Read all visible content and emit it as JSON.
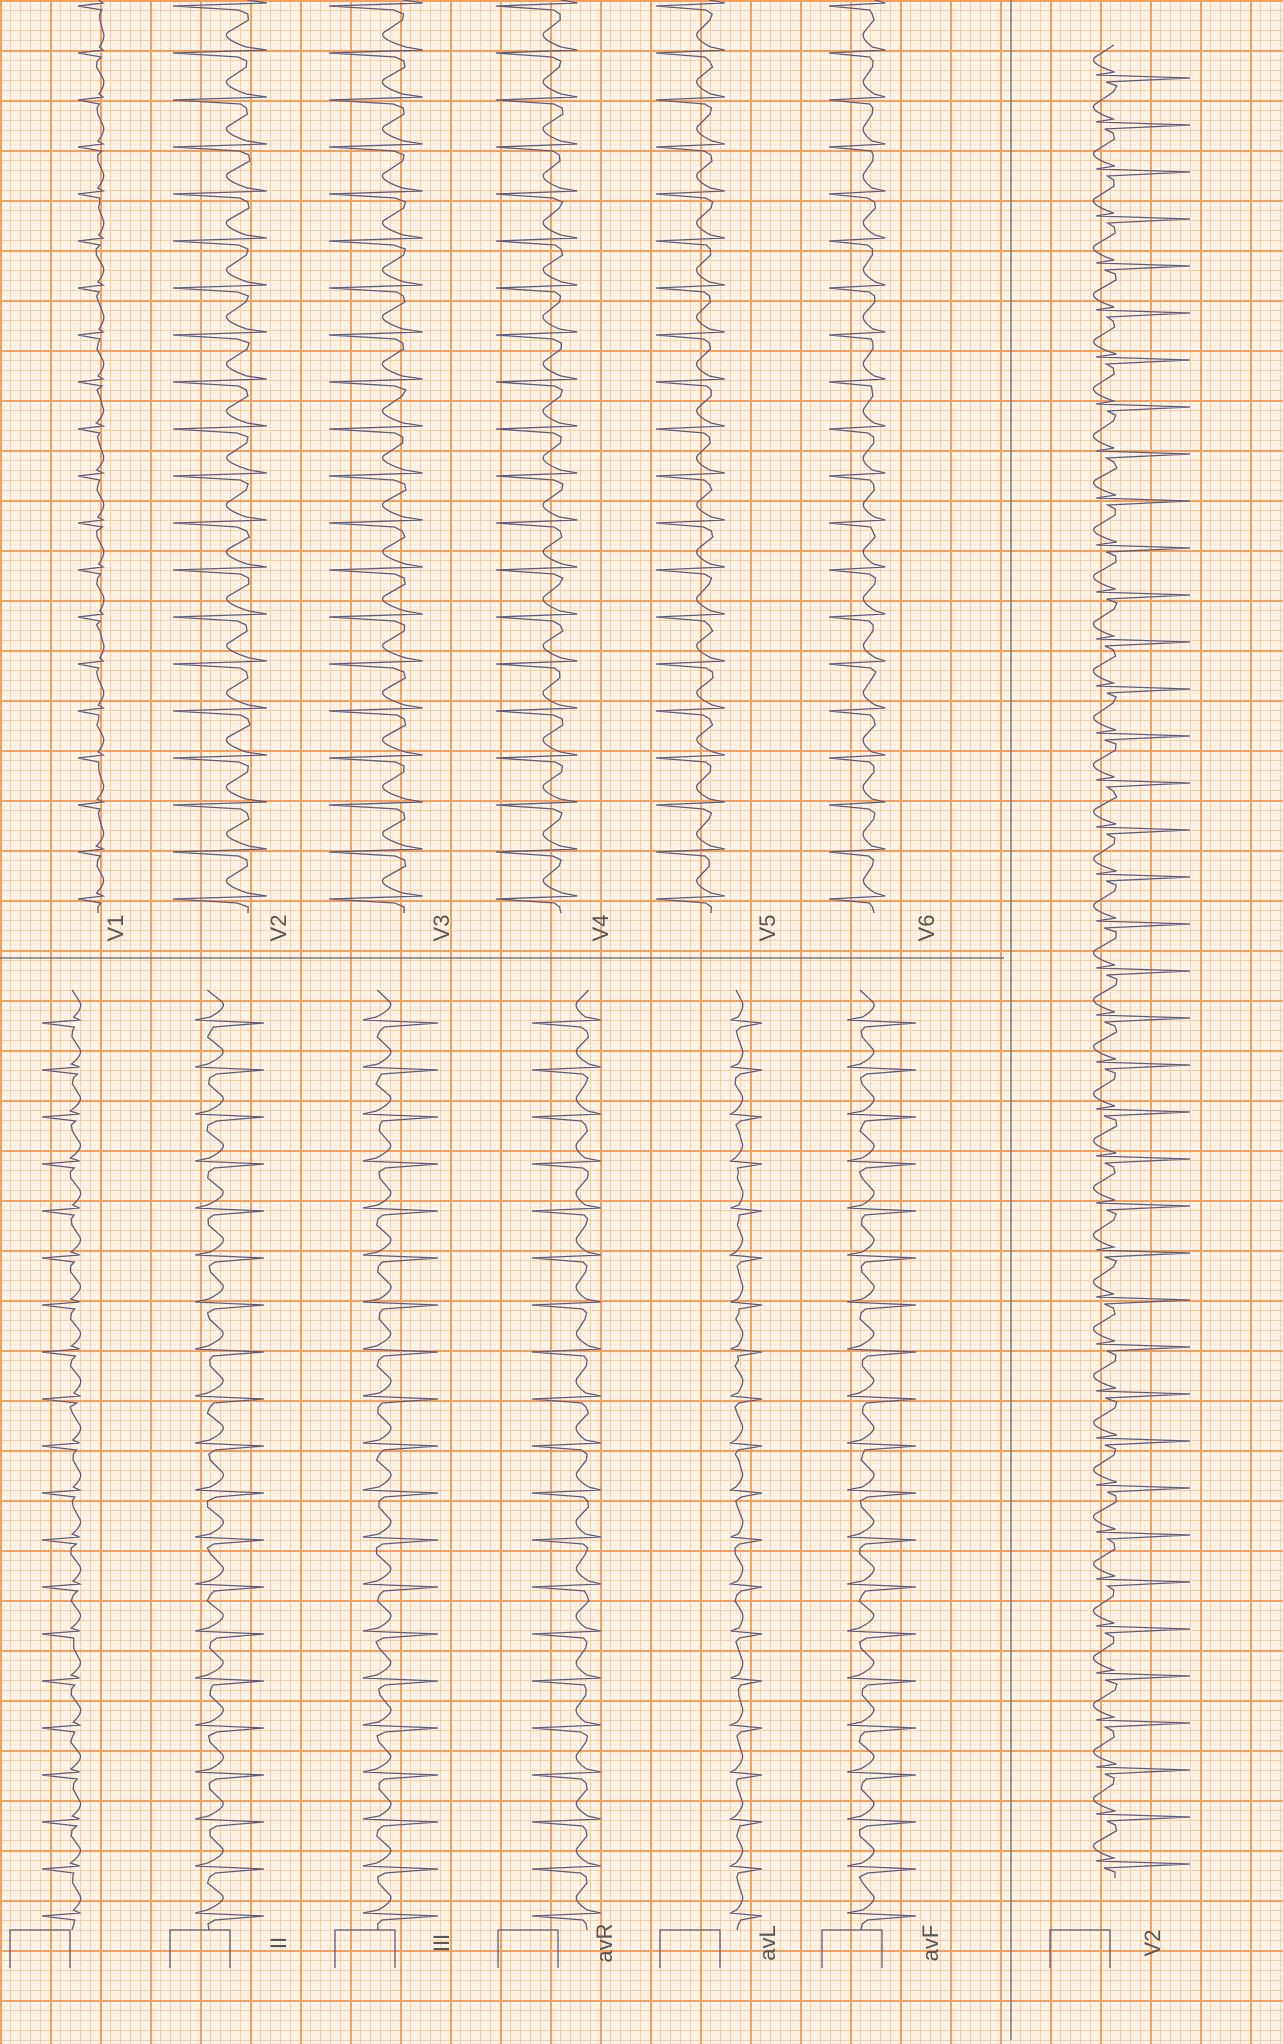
{
  "leads": {
    "top": [
      "V1",
      "V2",
      "V3",
      "V4",
      "V5",
      "V6"
    ],
    "bottom": [
      "II",
      "III",
      "avR",
      "avL",
      "avF"
    ],
    "rhythm": "V2"
  }
}
